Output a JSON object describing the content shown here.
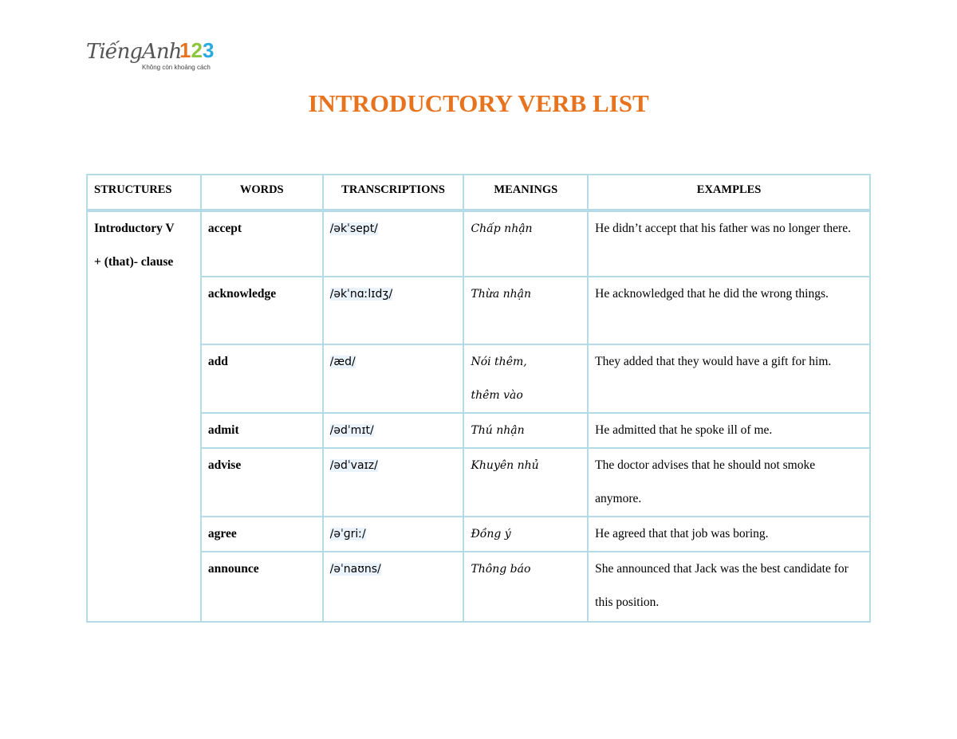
{
  "logo": {
    "text": "TiếngAnh",
    "number": "123",
    "tagline": "Không còn khoảng cách",
    "colors": [
      "#e8731e",
      "#8cc63f",
      "#29abe2"
    ]
  },
  "title": "INTRODUCTORY  VERB LIST",
  "table": {
    "headers": [
      "STRUCTURES",
      "WORDS",
      "TRANSCRIPTIONS",
      "MEANINGS",
      "EXAMPLES"
    ],
    "structure": [
      "Introductory  V",
      "+ (that)-  clause"
    ],
    "rows": [
      {
        "word": "accept",
        "ipa": "/əkˈsept/",
        "meaning": [
          "Chấp nhận"
        ],
        "example": "He didn’t accept that his father was no longer there."
      },
      {
        "word": "acknowledge",
        "ipa": "/əkˈnɑːlɪdʒ/",
        "meaning": [
          "Thừa nhận"
        ],
        "example": "He acknowledged that he did the wrong things."
      },
      {
        "word": "add",
        "ipa": "/æd/",
        "meaning": [
          "Nói thêm,",
          "thêm vào"
        ],
        "example": "They added that they would have a gift for him."
      },
      {
        "word": "admit",
        "ipa": "/ədˈmɪt/",
        "meaning": [
          "Thú nhận"
        ],
        "example": "He admitted that he spoke ill of me."
      },
      {
        "word": "advise",
        "ipa": "/ədˈvaɪz/",
        "meaning": [
          "Khuyên nhủ"
        ],
        "example": "The doctor advises that he should not smoke anymore."
      },
      {
        "word": "agree",
        "ipa": "/əˈɡriː/",
        "meaning": [
          "Đồng ý"
        ],
        "example": "He agreed that that job was boring."
      },
      {
        "word": "announce",
        "ipa": "/əˈnaʊns/",
        "meaning": [
          "Thông báo"
        ],
        "example": "She announced that Jack was the best candidate for this position."
      }
    ]
  }
}
